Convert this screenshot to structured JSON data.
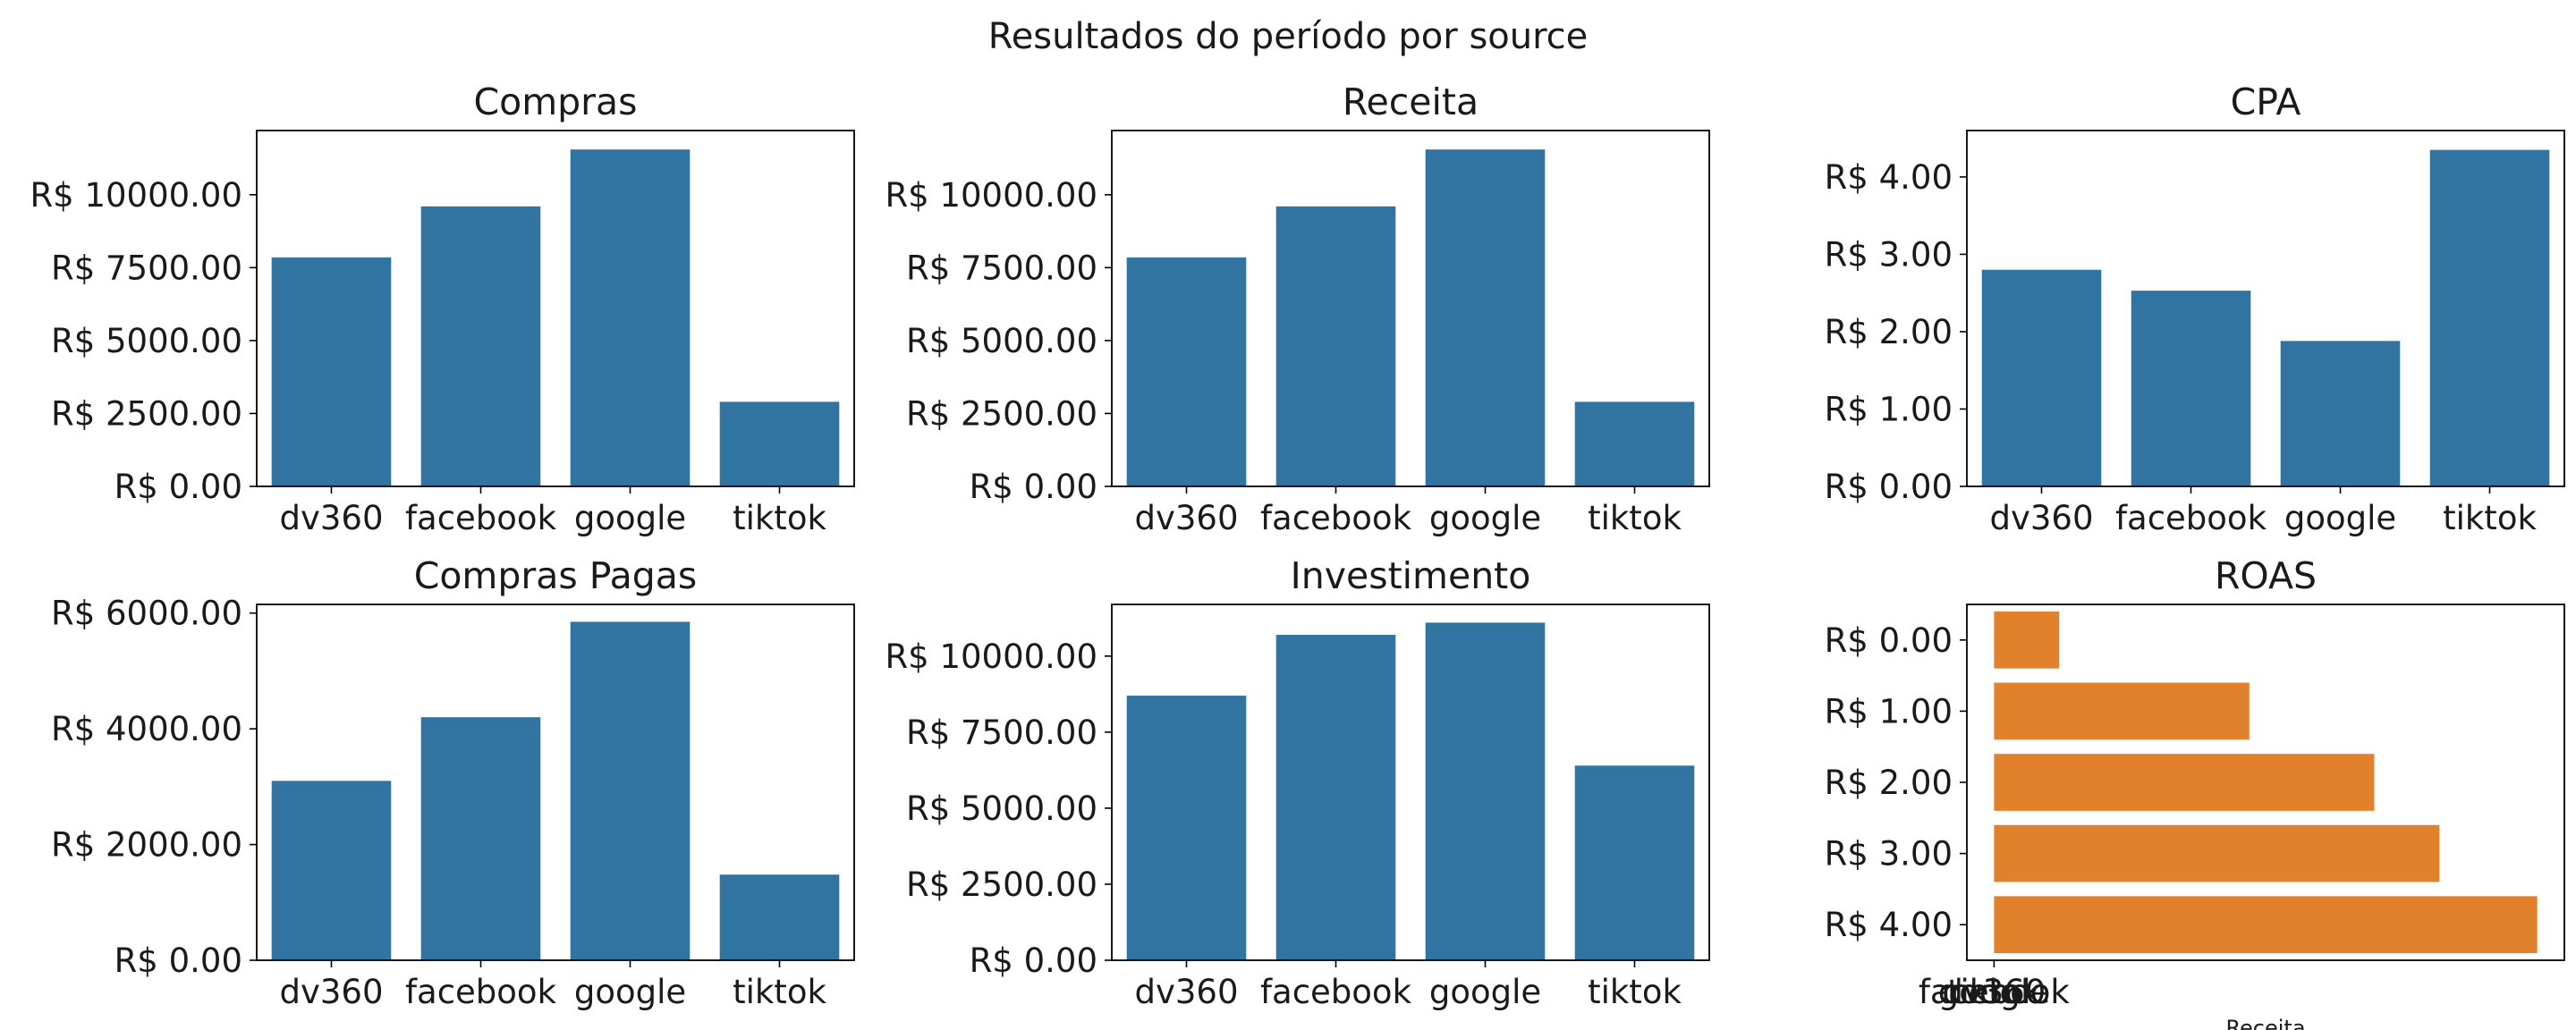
{
  "title": "Resultados do período por source",
  "colors": {
    "blue": "#3274a1",
    "orange": "#e1812c",
    "axis": "#000000"
  },
  "chart_data": [
    {
      "type": "bar",
      "title": "Compras",
      "categories": [
        "dv360",
        "facebook",
        "google",
        "tiktok"
      ],
      "values": [
        7850,
        9600,
        11550,
        2900
      ],
      "ylim": [
        0,
        12200
      ],
      "yticks": [
        0,
        2500,
        5000,
        7500,
        10000
      ],
      "ytick_labels": [
        "R$ 0.00",
        "R$ 2500.00",
        "R$ 5000.00",
        "R$ 7500.00",
        "R$ 10000.00"
      ],
      "xlabel": "",
      "ylabel": "",
      "color": "#3274a1"
    },
    {
      "type": "bar",
      "title": "Receita",
      "categories": [
        "dv360",
        "facebook",
        "google",
        "tiktok"
      ],
      "values": [
        7850,
        9600,
        11550,
        2900
      ],
      "ylim": [
        0,
        12200
      ],
      "yticks": [
        0,
        2500,
        5000,
        7500,
        10000
      ],
      "ytick_labels": [
        "R$ 0.00",
        "R$ 2500.00",
        "R$ 5000.00",
        "R$ 7500.00",
        "R$ 10000.00"
      ],
      "xlabel": "",
      "ylabel": "",
      "color": "#3274a1"
    },
    {
      "type": "bar",
      "title": "CPA",
      "categories": [
        "dv360",
        "facebook",
        "google",
        "tiktok"
      ],
      "values": [
        2.8,
        2.53,
        1.88,
        4.35
      ],
      "ylim": [
        0,
        4.6
      ],
      "yticks": [
        0,
        1,
        2,
        3,
        4
      ],
      "ytick_labels": [
        "R$ 0.00",
        "R$ 1.00",
        "R$ 2.00",
        "R$ 3.00",
        "R$ 4.00"
      ],
      "xlabel": "",
      "ylabel": "",
      "color": "#3274a1"
    },
    {
      "type": "bar",
      "title": "Compras Pagas",
      "categories": [
        "dv360",
        "facebook",
        "google",
        "tiktok"
      ],
      "values": [
        3100,
        4200,
        5850,
        1480
      ],
      "ylim": [
        0,
        6150
      ],
      "yticks": [
        0,
        2000,
        4000,
        6000
      ],
      "ytick_labels": [
        "R$ 0.00",
        "R$ 2000.00",
        "R$ 4000.00",
        "R$ 6000.00"
      ],
      "xlabel": "",
      "ylabel": "",
      "color": "#3274a1"
    },
    {
      "type": "bar",
      "title": "Investimento",
      "categories": [
        "dv360",
        "facebook",
        "google",
        "tiktok"
      ],
      "values": [
        8700,
        10700,
        11100,
        6400
      ],
      "ylim": [
        0,
        11700
      ],
      "yticks": [
        0,
        2500,
        5000,
        7500,
        10000
      ],
      "ytick_labels": [
        "R$ 0.00",
        "R$ 2500.00",
        "R$ 5000.00",
        "R$ 7500.00",
        "R$ 10000.00"
      ],
      "xlabel": "",
      "ylabel": "",
      "color": "#3274a1"
    },
    {
      "type": "hbar",
      "title": "ROAS",
      "categories": [
        "R$ 0.00",
        "R$ 1.00",
        "R$ 2.00",
        "R$ 3.00",
        "R$ 4.00"
      ],
      "values": [
        0.12,
        0.47,
        0.7,
        0.82,
        1.0
      ],
      "xlim": [
        -0.05,
        1.05
      ],
      "xtick_labels": [
        "facebook",
        "dv360",
        "google",
        "tiktok"
      ],
      "xlabel": "Receita",
      "ylabel": "",
      "color": "#e1812c"
    }
  ]
}
